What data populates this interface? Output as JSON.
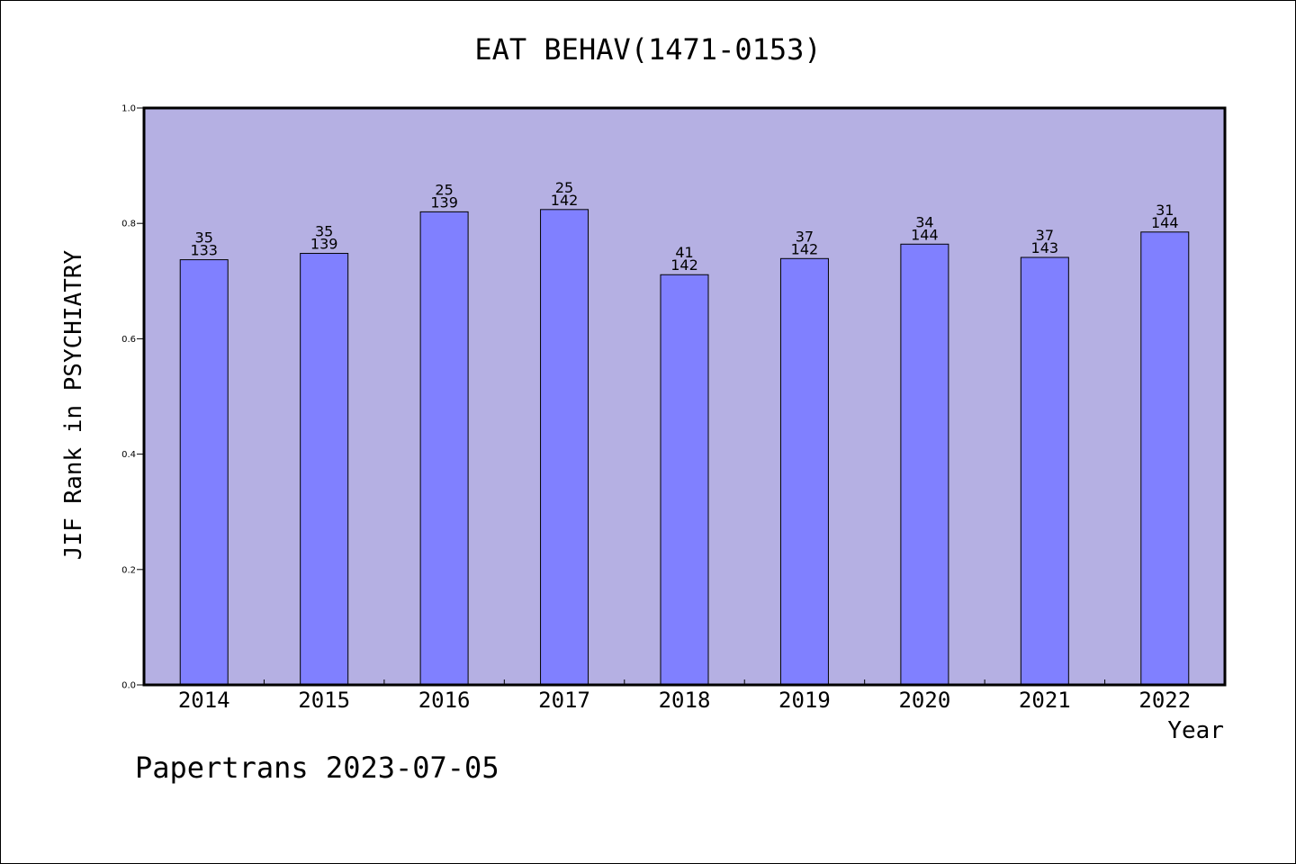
{
  "chart_data": {
    "type": "bar",
    "title": "EAT BEHAV(1471-0153)",
    "xlabel": "Year",
    "ylabel": "JIF Rank in PSYCHIATRY",
    "categories": [
      "2014",
      "2015",
      "2016",
      "2017",
      "2018",
      "2019",
      "2020",
      "2021",
      "2022"
    ],
    "values": [
      0.737,
      0.748,
      0.82,
      0.824,
      0.711,
      0.739,
      0.764,
      0.741,
      0.785
    ],
    "rank": [
      "35",
      "35",
      "25",
      "25",
      "41",
      "37",
      "34",
      "37",
      "31"
    ],
    "total": [
      "133",
      "139",
      "139",
      "142",
      "142",
      "142",
      "144",
      "143",
      "144"
    ],
    "ylim": [
      0,
      1.0
    ],
    "yticks": [
      "0.0",
      "0.2",
      "0.4",
      "0.6",
      "0.8",
      "1.0"
    ],
    "grid": false,
    "colors": {
      "plot_background": "#b5b0e3",
      "bar_fill": "#8080ff",
      "bar_stroke": "#000000"
    }
  },
  "footer": "Papertrans 2023-07-05"
}
